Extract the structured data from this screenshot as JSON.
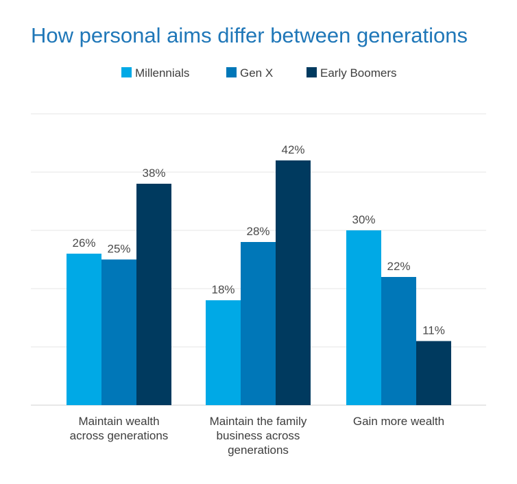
{
  "chart_data": {
    "type": "bar",
    "title": "How personal aims differ between generations",
    "categories": [
      [
        "Maintain wealth",
        "across generations"
      ],
      [
        "Maintain the family",
        "business across",
        "generations"
      ],
      [
        "Gain more wealth"
      ]
    ],
    "series": [
      {
        "name": "Millennials",
        "color": "#00a9e6",
        "values": [
          26,
          18,
          30
        ]
      },
      {
        "name": "Gen X",
        "color": "#0077b8",
        "values": [
          25,
          28,
          22
        ]
      },
      {
        "name": "Early Boomers",
        "color": "#003a5f",
        "values": [
          38,
          42,
          11
        ]
      }
    ],
    "value_suffix": "%",
    "ylim": [
      0,
      50
    ],
    "grid": true,
    "legend_position": "top-center"
  }
}
